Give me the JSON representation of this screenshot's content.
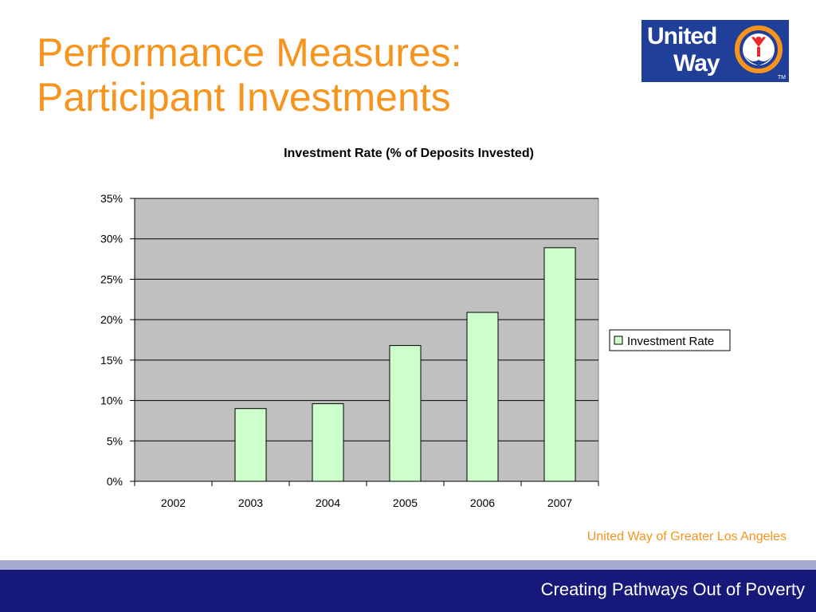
{
  "slide": {
    "title_line1": "Performance Measures:",
    "title_line2": "Participant Investments",
    "org_name": "United Way of Greater Los Angeles",
    "tagline": "Creating Pathways Out of Poverty"
  },
  "logo": {
    "word1": "United",
    "word2": "Way",
    "trademark": "TM",
    "colors": {
      "background": "#1F3F99",
      "ring": "#F7941D",
      "figure": "#E8282B"
    }
  },
  "chart_data": {
    "type": "bar",
    "title": "Investment Rate (% of Deposits Invested)",
    "categories": [
      "2002",
      "2003",
      "2004",
      "2005",
      "2006",
      "2007"
    ],
    "series": [
      {
        "name": "Investment Rate",
        "values": [
          0,
          9.0,
          9.6,
          16.8,
          20.9,
          28.9
        ],
        "color": "#CCFFCC"
      }
    ],
    "ylim": [
      0,
      35
    ],
    "yticks": [
      0,
      5,
      10,
      15,
      20,
      25,
      30,
      35
    ],
    "ytick_labels": [
      "0%",
      "5%",
      "10%",
      "15%",
      "20%",
      "25%",
      "30%",
      "35%"
    ],
    "xlabel": "",
    "ylabel": "",
    "grid": true,
    "legend_position": "right",
    "plot_background": "#C0C0C0"
  }
}
